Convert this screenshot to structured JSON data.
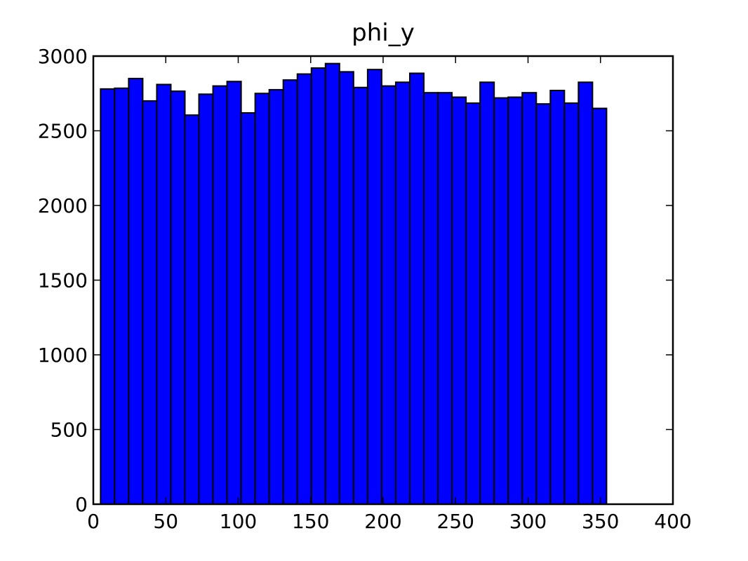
{
  "chart_data": {
    "type": "bar",
    "title": "phi_y",
    "xlabel": "",
    "ylabel": "",
    "xlim": [
      0,
      400
    ],
    "ylim": [
      0,
      3000
    ],
    "xticks": [
      0,
      50,
      100,
      150,
      200,
      250,
      300,
      350,
      400
    ],
    "yticks": [
      0,
      500,
      1000,
      1500,
      2000,
      2500,
      3000
    ],
    "bin_width": 9.7,
    "bin_starts": [
      5,
      14.7,
      24.4,
      34.1,
      43.8,
      53.5,
      63.2,
      72.9,
      82.6,
      92.3,
      102,
      111.7,
      121.4,
      131.1,
      140.8,
      150.5,
      160.2,
      169.9,
      179.6,
      189.3,
      199,
      208.7,
      218.4,
      228.1,
      237.8,
      247.5,
      257.2,
      266.9,
      276.6,
      286.3,
      296,
      305.7,
      315.4,
      325.1,
      334.8,
      344.5
    ],
    "values": [
      2780,
      2785,
      2850,
      2700,
      2810,
      2765,
      2605,
      2745,
      2800,
      2830,
      2620,
      2750,
      2775,
      2840,
      2880,
      2920,
      2950,
      2895,
      2790,
      2910,
      2800,
      2825,
      2885,
      2755,
      2755,
      2725,
      2685,
      2825,
      2720,
      2725,
      2755,
      2680,
      2770,
      2685,
      2825,
      2650
    ],
    "bar_color": "#0000ff",
    "edge_color": "#000000",
    "grid": false,
    "legend": "none"
  }
}
